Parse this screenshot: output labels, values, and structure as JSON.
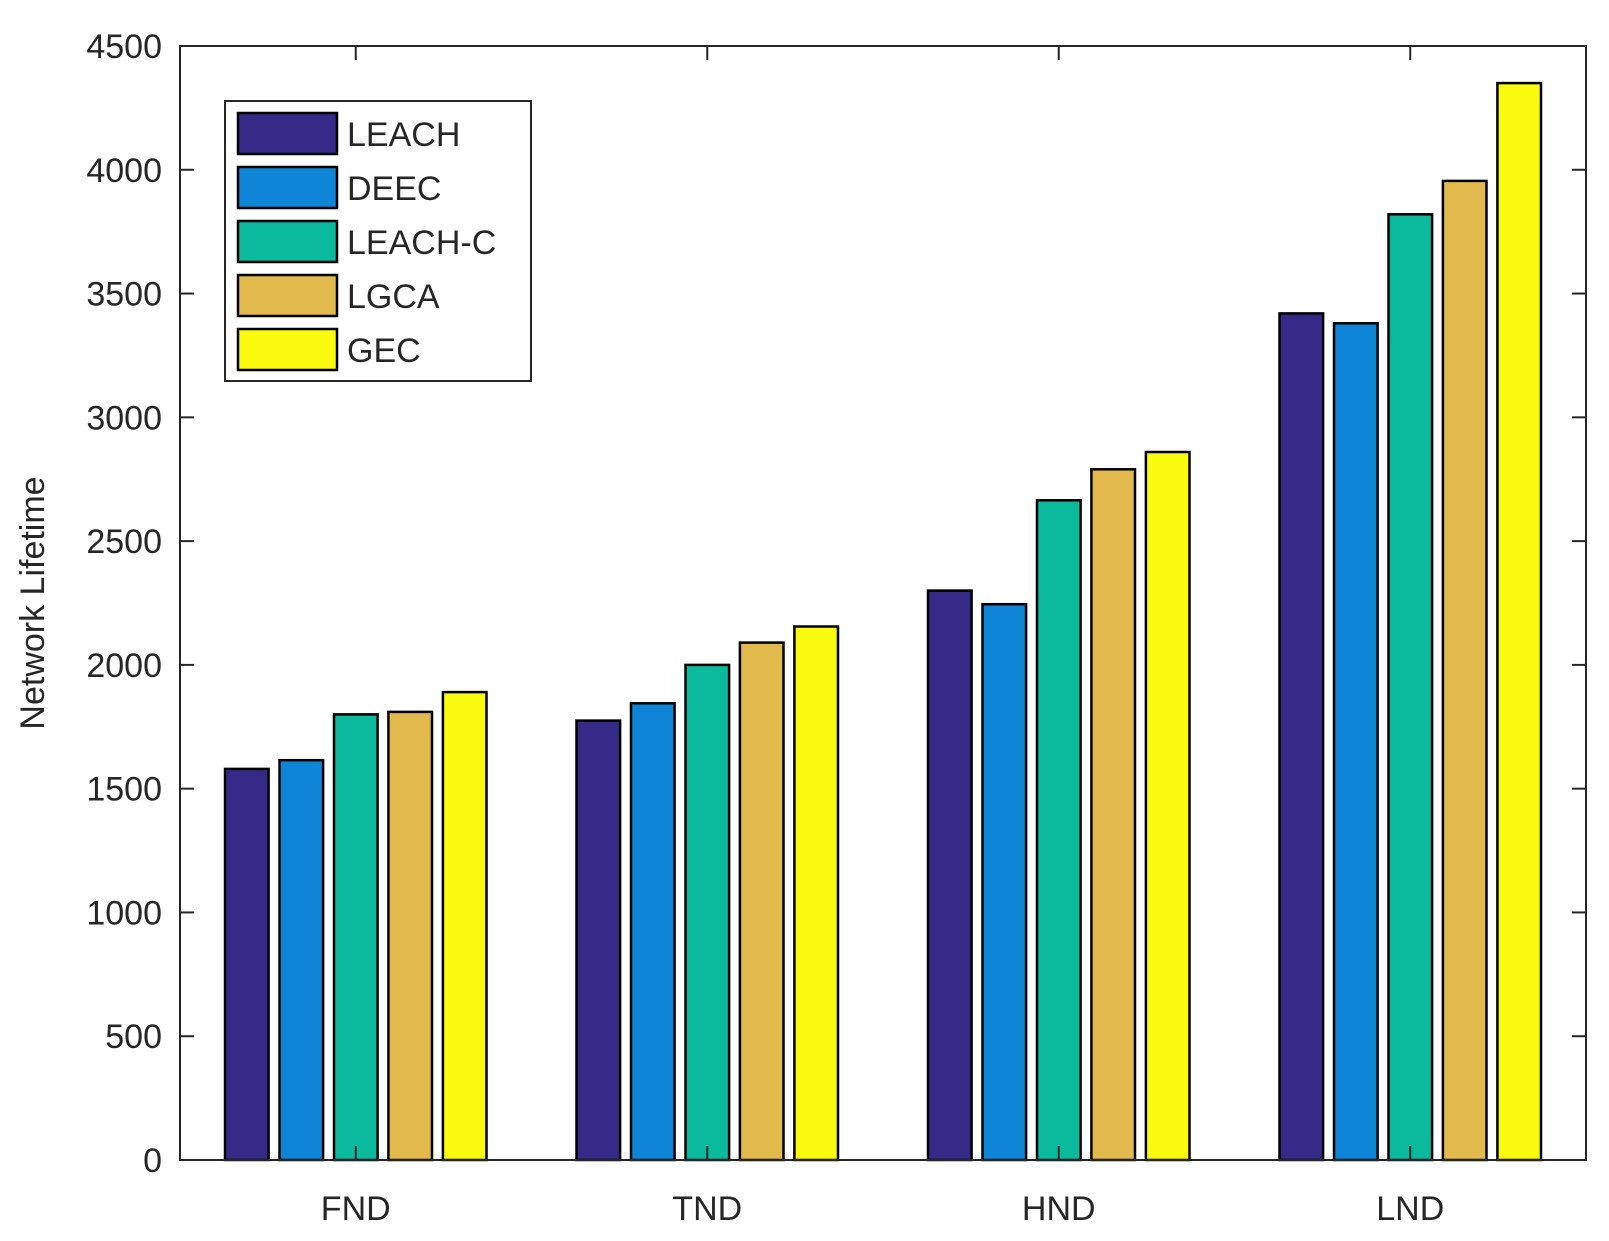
{
  "chart_data": {
    "type": "bar",
    "title": "",
    "xlabel": "",
    "ylabel": "Network Lifetime",
    "categories": [
      "FND",
      "TND",
      "HND",
      "LND"
    ],
    "ylim": [
      0,
      4500
    ],
    "yticks": [
      "0",
      "500",
      "1000",
      "1500",
      "2000",
      "2500",
      "3000",
      "3500",
      "4000",
      "4500"
    ],
    "grid": false,
    "legend_position": "top-left",
    "series": [
      {
        "name": "LEACH",
        "color": "#352a87",
        "values": [
          1580,
          1775,
          2300,
          3420
        ]
      },
      {
        "name": "DEEC",
        "color": "#0f85d8",
        "values": [
          1615,
          1845,
          2245,
          3380
        ]
      },
      {
        "name": "LEACH-C",
        "color": "#0bb99c",
        "values": [
          1800,
          2000,
          2665,
          3820
        ]
      },
      {
        "name": "LGCA",
        "color": "#e2b94c",
        "values": [
          1810,
          2090,
          2790,
          3955
        ]
      },
      {
        "name": "GEC",
        "color": "#f9fa0e",
        "values": [
          1890,
          2155,
          2860,
          4350
        ]
      }
    ]
  }
}
